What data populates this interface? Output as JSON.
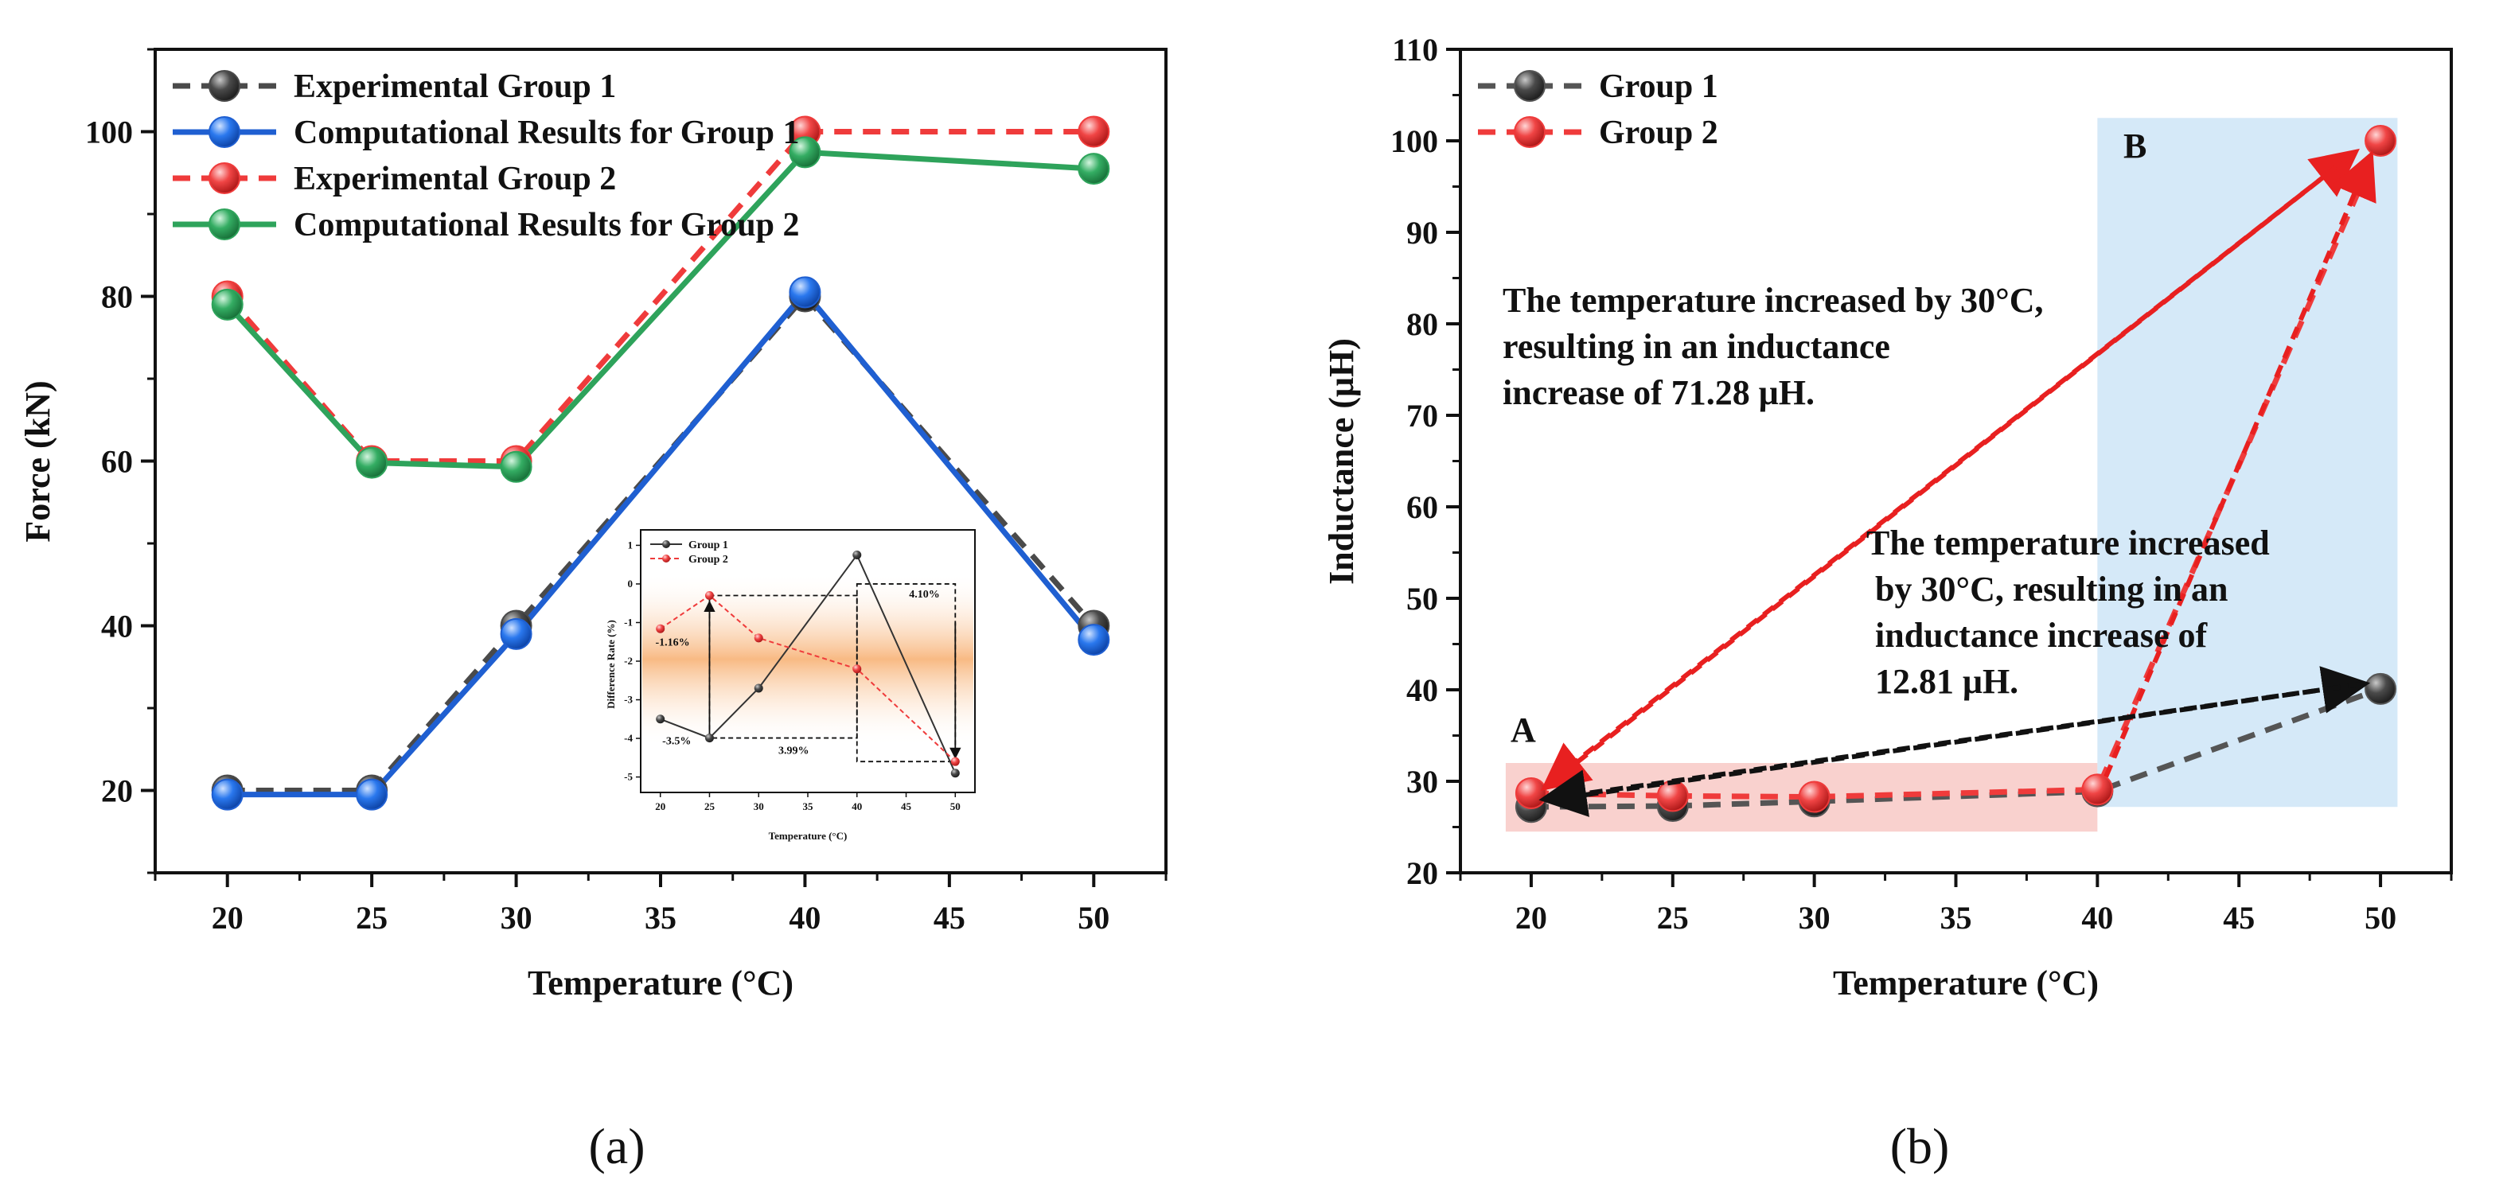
{
  "chart_data": [
    {
      "panel": "(a)",
      "type": "line",
      "xlabel": "Temperature (°C)",
      "ylabel": "Force (kN)",
      "x": [
        20,
        25,
        30,
        40,
        50
      ],
      "xticks": [
        20,
        25,
        30,
        35,
        40,
        45,
        50
      ],
      "yticks": [
        20,
        40,
        60,
        80,
        100
      ],
      "xlim": [
        17.5,
        52.5
      ],
      "ylim": [
        10,
        110
      ],
      "legend_position": "top-left",
      "series": [
        {
          "name": "Experimental Group 1",
          "values": [
            20,
            20,
            40,
            80,
            40
          ],
          "color": "#4a4a4a",
          "marker": "#3a3a3a",
          "dashed": true
        },
        {
          "name": "Computational Results for Group 1",
          "values": [
            19.5,
            19.5,
            39,
            80.5,
            38.3
          ],
          "color": "#1f5fd1",
          "marker": "#1f6fe8",
          "dashed": false
        },
        {
          "name": "Experimental Group 2",
          "values": [
            80,
            60,
            60,
            100,
            100
          ],
          "color": "#ef3b3b",
          "marker": "#ef3b3b",
          "dashed": true
        },
        {
          "name": "Computational Results for Group 2",
          "values": [
            79,
            59.8,
            59.3,
            97.5,
            95.5
          ],
          "color": "#2ea35b",
          "marker": "#2ea35b",
          "dashed": false
        }
      ],
      "inset": {
        "ylabel": "Difference Rate (%)",
        "xlabel": "Temperature (°C)",
        "x": [
          20,
          25,
          30,
          40,
          50
        ],
        "xticks": [
          20,
          25,
          30,
          35,
          40,
          45,
          50
        ],
        "yticks": [
          1,
          0,
          -1,
          -2,
          -3,
          -4,
          -5
        ],
        "xlim": [
          18,
          52
        ],
        "ylim": [
          -5.4,
          1.4
        ],
        "series": [
          {
            "name": "Group 1",
            "values": [
              -3.5,
              -3.99,
              -2.7,
              0.75,
              -4.9
            ],
            "color": "#333333",
            "dashed": false
          },
          {
            "name": "Group 2",
            "values": [
              -1.16,
              -0.3,
              -1.4,
              -2.2,
              -4.6
            ],
            "color": "#ef3b3b",
            "dashed": true
          }
        ],
        "annotations": [
          "-1.16%",
          "-3.5%",
          "3.99%",
          "4.10%"
        ]
      }
    },
    {
      "panel": "(b)",
      "type": "line",
      "xlabel": "Temperature (°C)",
      "ylabel": "Inductance  (μH)",
      "x": [
        20,
        25,
        30,
        40,
        50
      ],
      "xticks": [
        20,
        25,
        30,
        35,
        40,
        45,
        50
      ],
      "yticks": [
        20,
        30,
        40,
        50,
        60,
        70,
        80,
        90,
        100,
        110
      ],
      "xlim": [
        17.5,
        52.5
      ],
      "ylim": [
        20,
        110
      ],
      "legend_position": "top-left",
      "series": [
        {
          "name": "Group 1",
          "values": [
            27.2,
            27.3,
            27.8,
            28.9,
            40.1
          ],
          "color": "#555555",
          "marker": "#3a3a3a",
          "dashed": true
        },
        {
          "name": "Group 2",
          "values": [
            28.7,
            28.4,
            28.3,
            29.1,
            100
          ],
          "color": "#ef3b3b",
          "marker": "#ef3b3b",
          "dashed": true
        }
      ],
      "region_labels": [
        "A",
        "B"
      ],
      "annotation_red": [
        "The temperature increased by 30°C,",
        "resulting in an inductance",
        "increase of 71.28 μH."
      ],
      "annotation_black": [
        "The temperature increased",
        " by 30°C, resulting in an",
        " inductance increase of",
        " 12.81 μH."
      ]
    }
  ]
}
